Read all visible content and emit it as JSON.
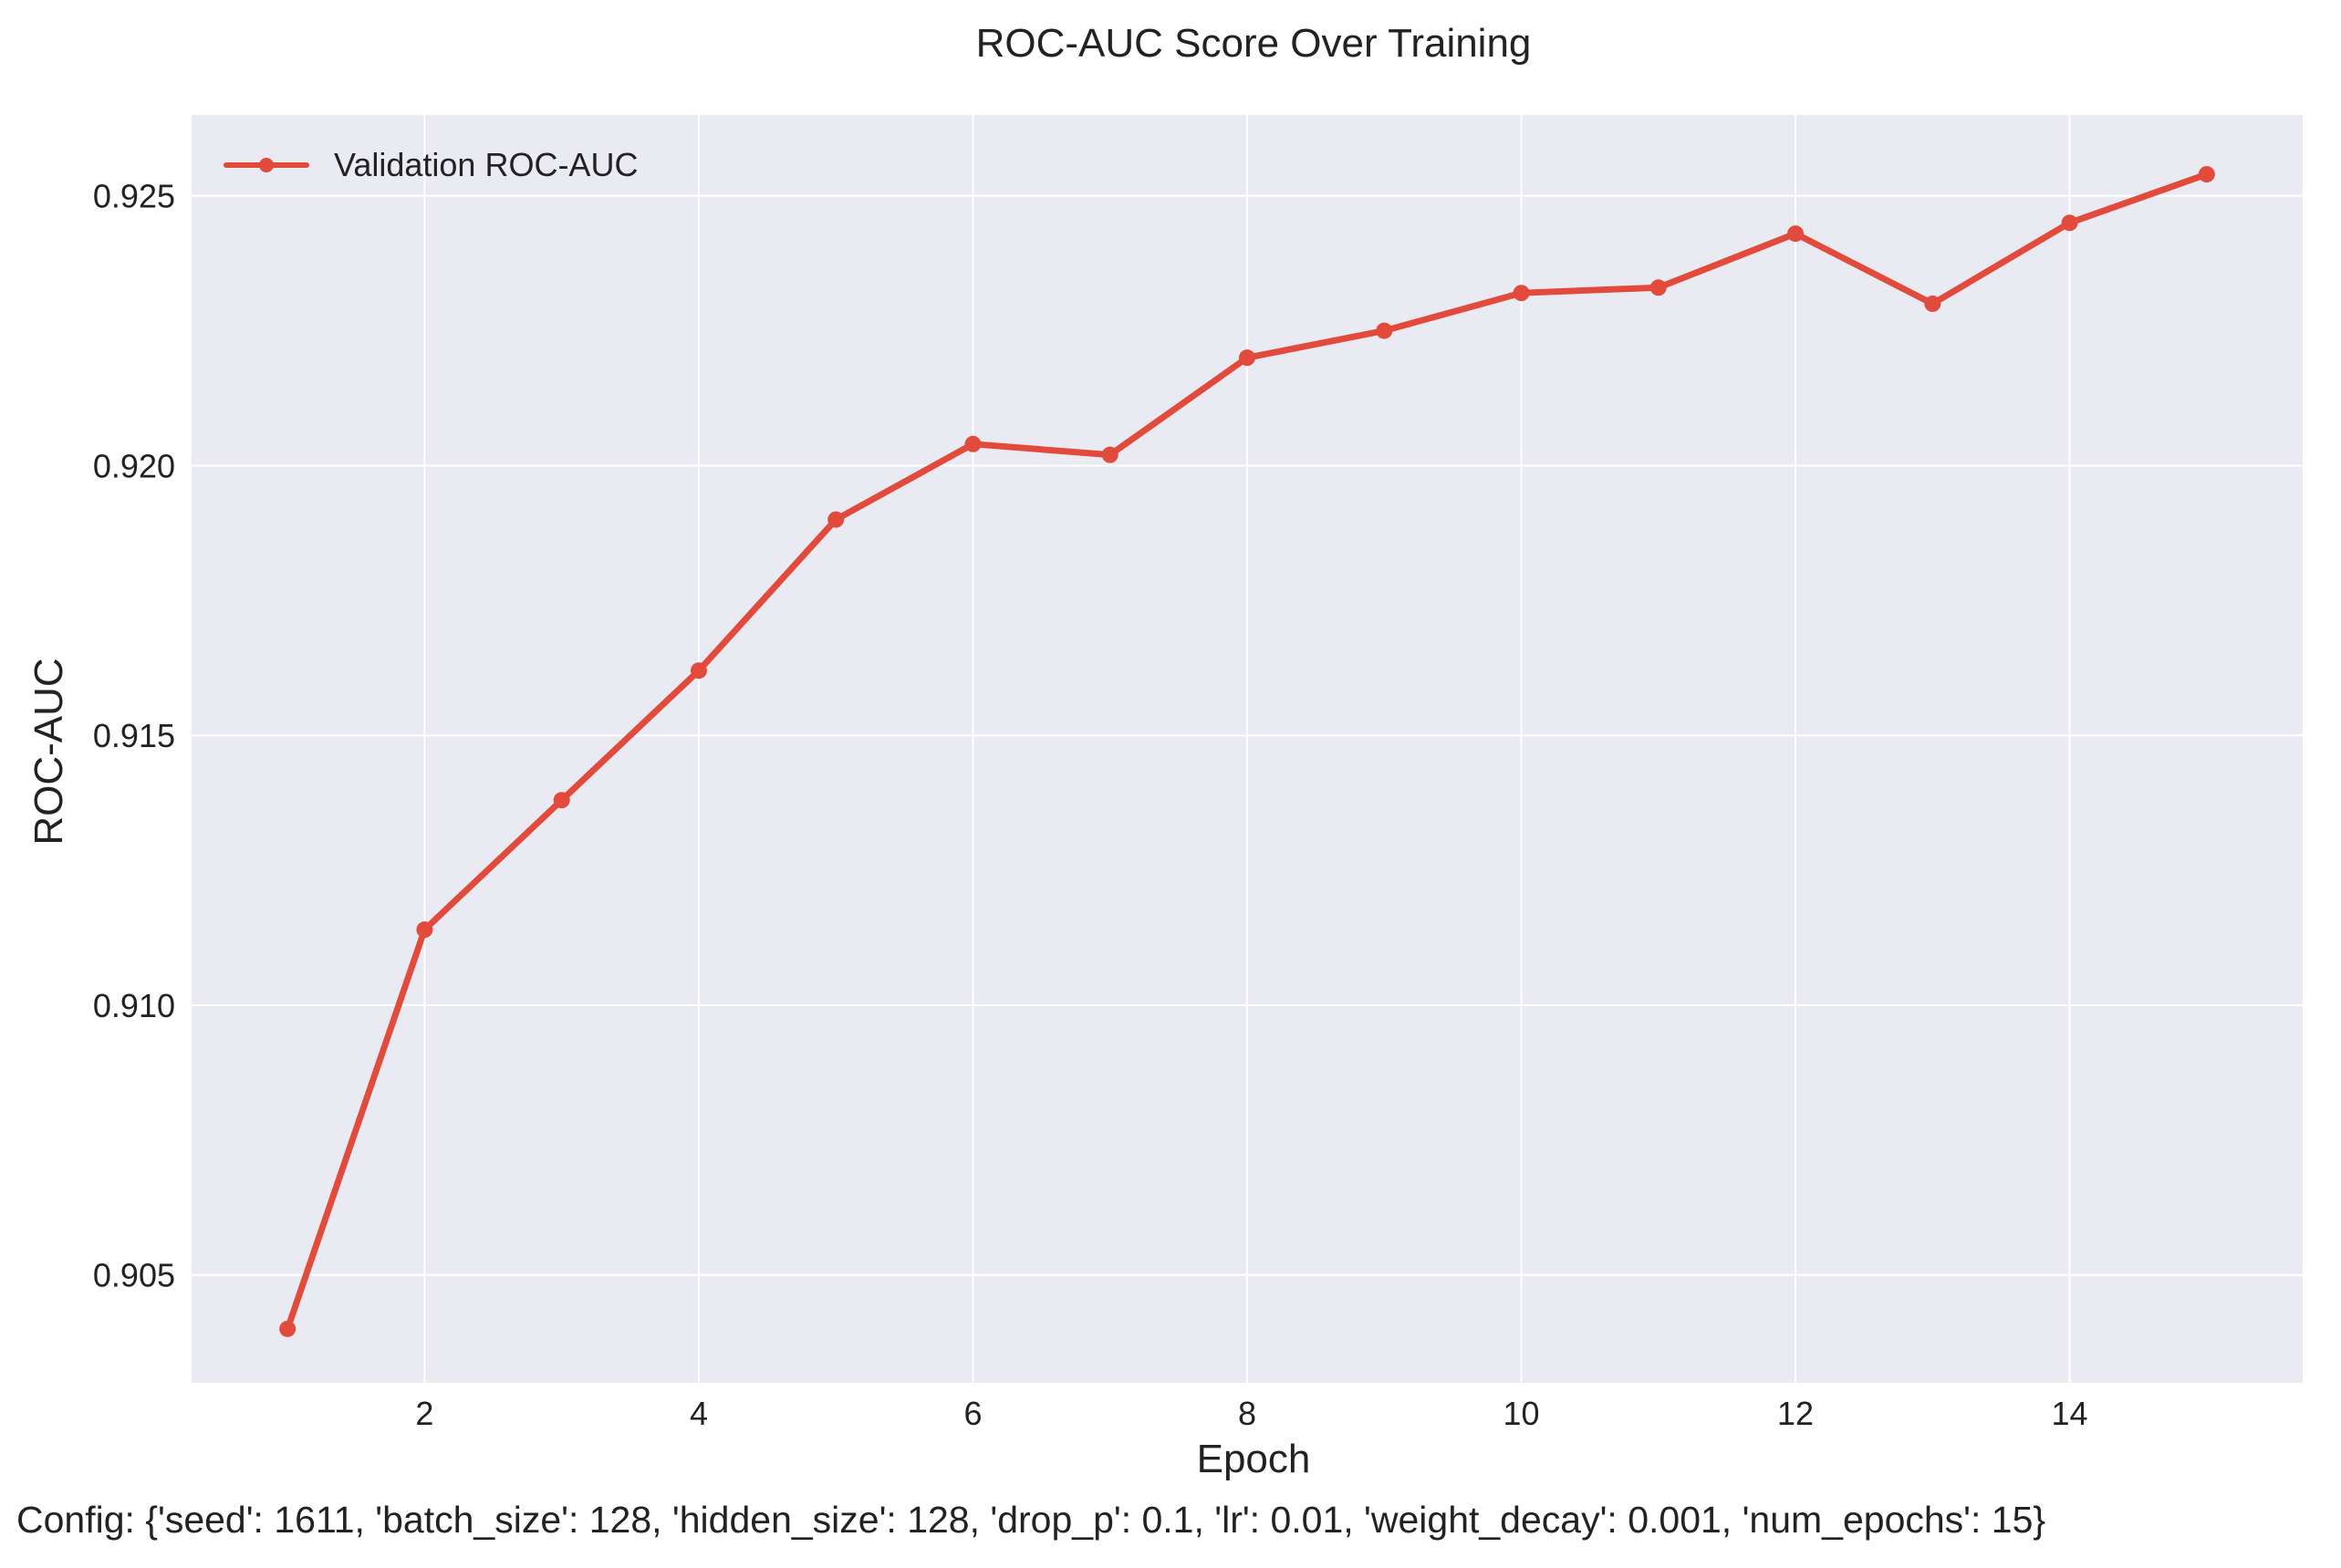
{
  "chart_data": {
    "type": "line",
    "title": "ROC-AUC Score Over Training",
    "xlabel": "Epoch",
    "ylabel": "ROC-AUC",
    "footer": "Config: {'seed': 1611, 'batch_size': 128, 'hidden_size': 128, 'drop_p': 0.1, 'lr': 0.01, 'weight_decay': 0.001, 'num_epochs': 15}",
    "xlim": [
      0.3,
      15.7
    ],
    "ylim": [
      0.903,
      0.9265
    ],
    "x_ticks": [
      2,
      4,
      6,
      8,
      10,
      12,
      14
    ],
    "y_ticks": [
      0.905,
      0.91,
      0.915,
      0.92,
      0.925
    ],
    "y_tick_labels": [
      "0.905",
      "0.910",
      "0.915",
      "0.920",
      "0.925"
    ],
    "grid": true,
    "legend_position": "upper-left",
    "background": "#eaeaf2",
    "series": [
      {
        "name": "Validation ROC-AUC",
        "color": "#e24a3b",
        "marker": "circle",
        "x": [
          1,
          2,
          3,
          4,
          5,
          6,
          7,
          8,
          9,
          10,
          11,
          12,
          13,
          14,
          15
        ],
        "values": [
          0.904,
          0.9114,
          0.9138,
          0.9162,
          0.919,
          0.9204,
          0.9202,
          0.922,
          0.9225,
          0.9232,
          0.9233,
          0.9243,
          0.923,
          0.9245,
          0.9254
        ]
      }
    ]
  }
}
